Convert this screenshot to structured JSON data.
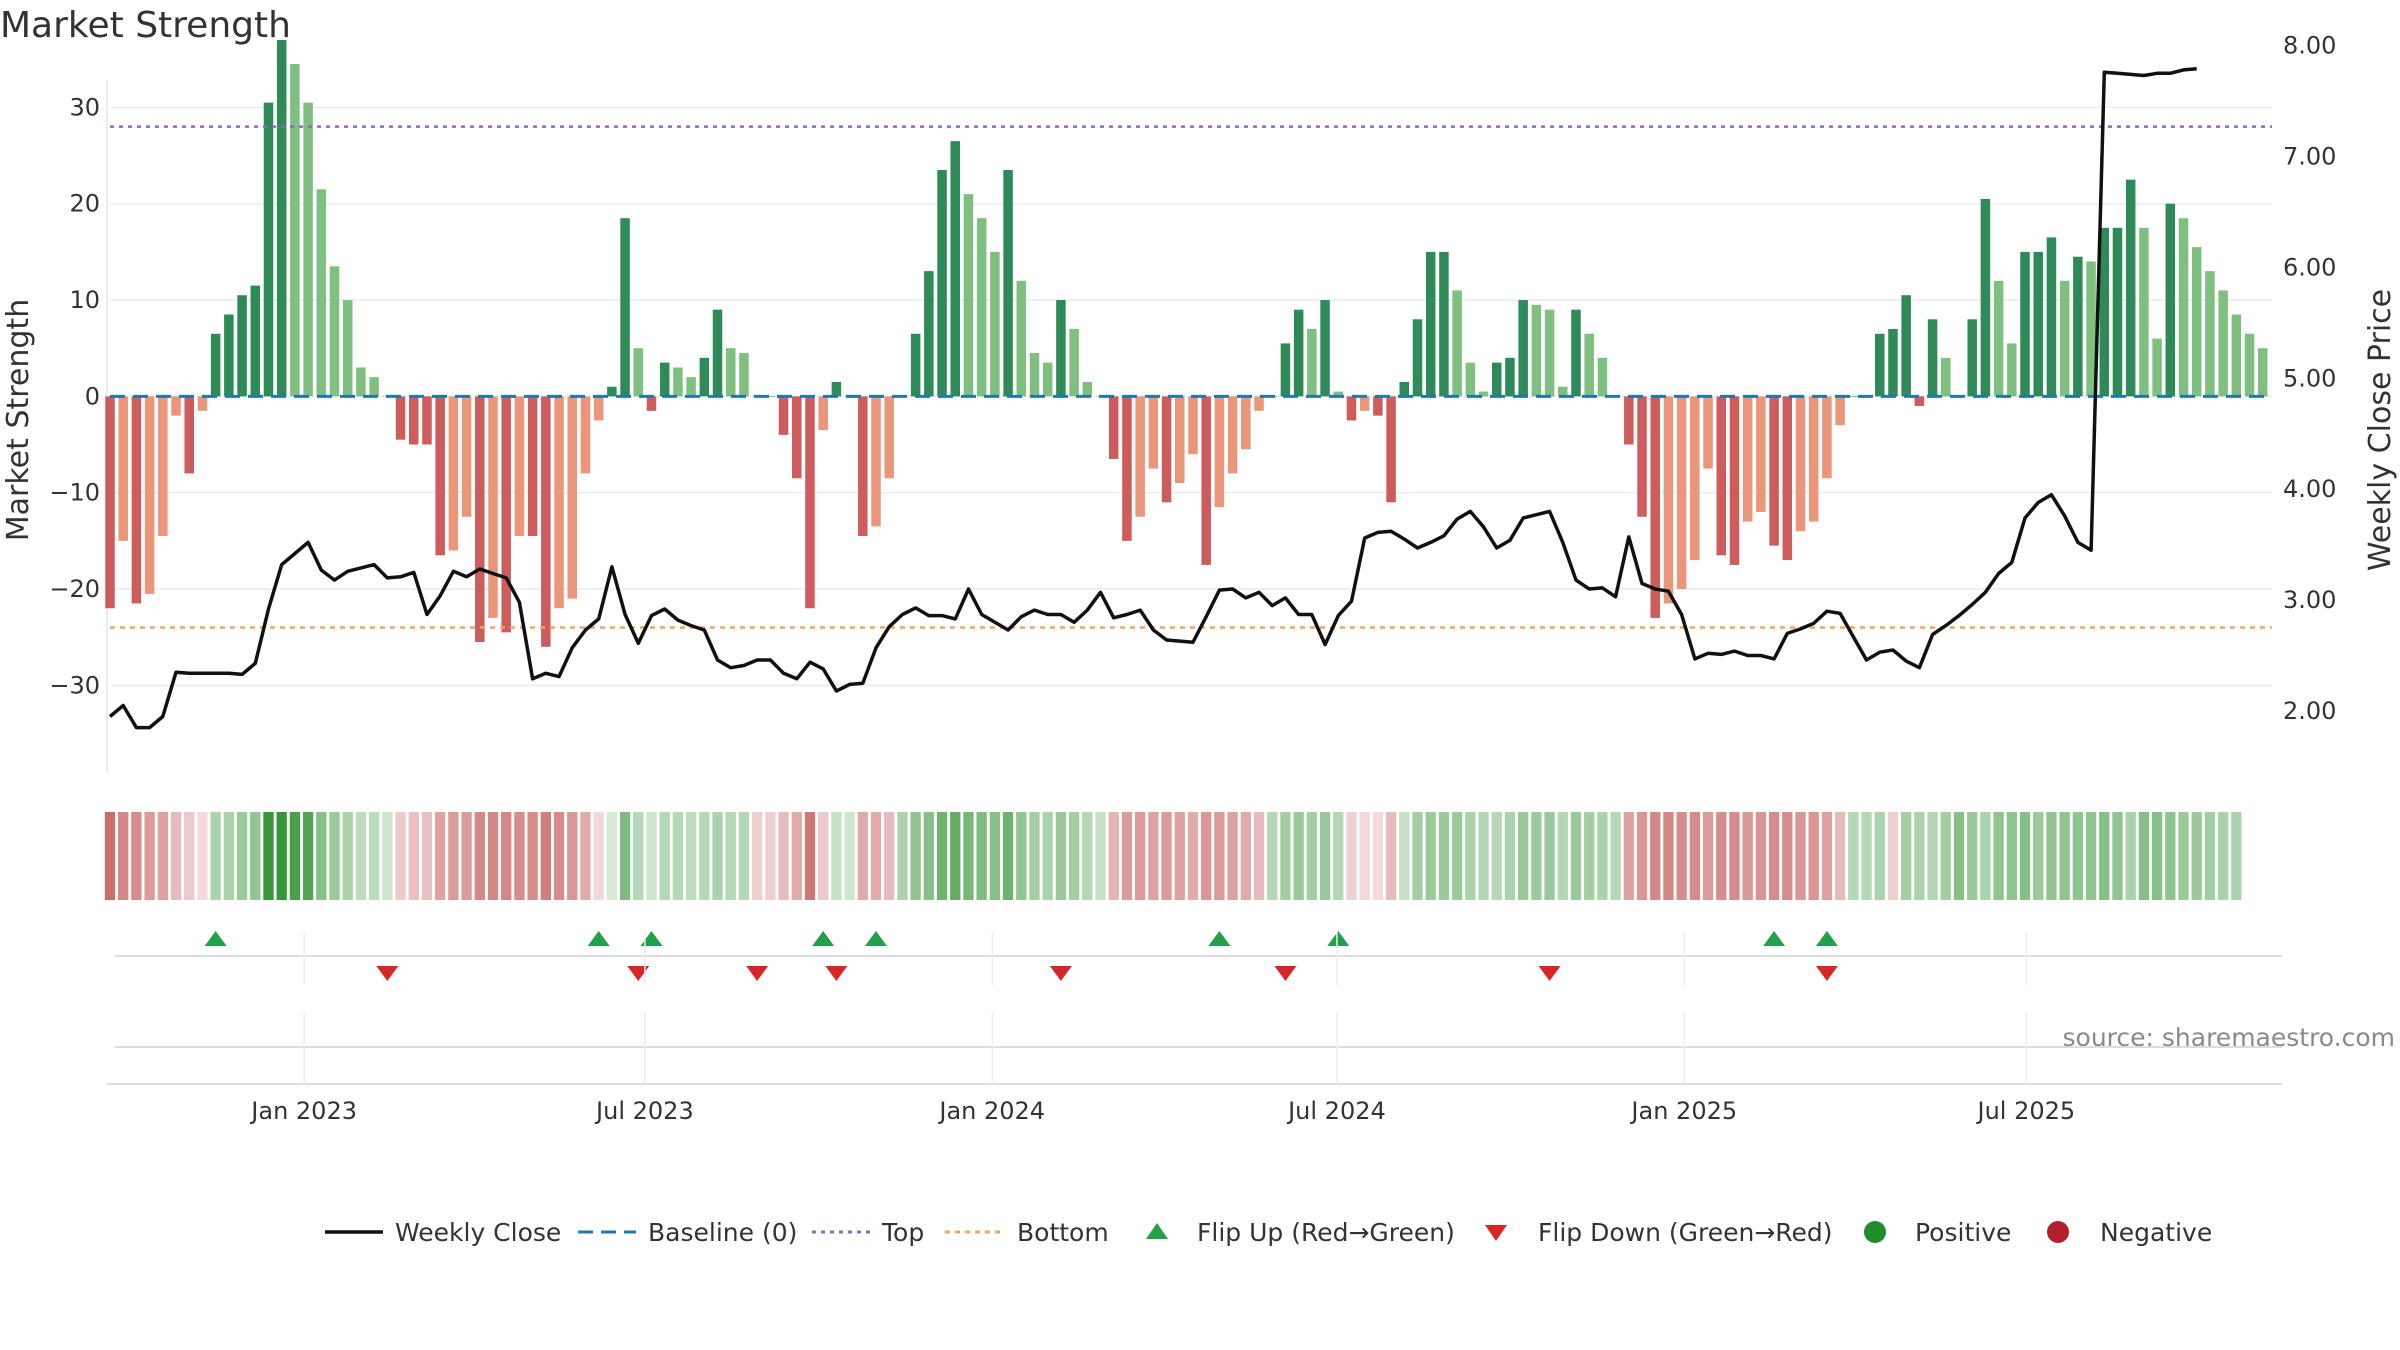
{
  "title": "Market Strength",
  "source": "source: sharemaestro.com",
  "colors": {
    "strong_green": "#2e8b57",
    "light_green": "#7fbf7f",
    "strong_red": "#cd5c5c",
    "light_red": "#e9967a",
    "line": "#111111",
    "baseline": "#1f77b4",
    "top": "#9467bd",
    "bottom": "#f4a460",
    "flip_up": "#22a04a",
    "flip_down": "#d62728",
    "positive": "#1e8c2a",
    "negative": "#b11f2c"
  },
  "legend": [
    {
      "label": "Weekly Close",
      "kind": "line"
    },
    {
      "label": "Baseline (0)",
      "kind": "dash"
    },
    {
      "label": "Top",
      "kind": "dot"
    },
    {
      "label": "Bottom",
      "kind": "dot2"
    },
    {
      "label": "Flip Up (Red→Green)",
      "kind": "up"
    },
    {
      "label": "Flip Down (Green→Red)",
      "kind": "down"
    },
    {
      "label": "Positive",
      "kind": "pos"
    },
    {
      "label": "Negative",
      "kind": "neg"
    }
  ],
  "chart_data": {
    "type": "bar",
    "title": "Market Strength",
    "ylabel": "Market Strength",
    "y2label": "Weekly Close Price",
    "ylim": [
      -39,
      37
    ],
    "y2lim": [
      1.45,
      8.05
    ],
    "y_ticks": [
      "30",
      "20",
      "10",
      "0",
      "−10",
      "−20",
      "−30"
    ],
    "y_tick_values": [
      30,
      20,
      10,
      0,
      -10,
      -20,
      -30
    ],
    "y2_ticks": [
      "8.00",
      "7.00",
      "6.00",
      "5.00",
      "4.00",
      "3.00",
      "2.00"
    ],
    "y2_tick_values": [
      8,
      7,
      6,
      5,
      4,
      3,
      2
    ],
    "x_ticks": [
      {
        "label": "Jan 2023",
        "week": 14.7
      },
      {
        "label": "Jul 2023",
        "week": 40.5
      },
      {
        "label": "Jan 2024",
        "week": 66.8
      },
      {
        "label": "Jul 2024",
        "week": 92.9
      },
      {
        "label": "Jan 2025",
        "week": 119.2
      },
      {
        "label": "Jul 2025",
        "week": 145.1
      }
    ],
    "reference_lines": {
      "baseline": 0,
      "top": 28,
      "bottom": -24
    },
    "strength": [
      -22,
      -15,
      -21.5,
      -20.5,
      -14.5,
      -2,
      -8,
      -1.5,
      6.5,
      8.5,
      10.5,
      11.5,
      30.5,
      37,
      34.5,
      30.5,
      21.5,
      13.5,
      10,
      3,
      2,
      0,
      -4.5,
      -5,
      -5,
      -16.5,
      -16,
      -12.5,
      -25.5,
      -23,
      -24.5,
      -14.5,
      -14.5,
      -26,
      -22,
      -21,
      -8,
      -2.5,
      1,
      18.5,
      5,
      -1.5,
      3.5,
      3,
      2,
      4,
      9,
      5,
      4.5,
      0,
      0,
      -4,
      -8.5,
      -22,
      -3.5,
      1.5,
      0,
      -14.5,
      -13.5,
      -8.5,
      0,
      6.5,
      13,
      23.5,
      26.5,
      21,
      18.5,
      15,
      23.5,
      12,
      4.5,
      3.5,
      10,
      7,
      1.5,
      0,
      -6.5,
      -15,
      -12.5,
      -7.5,
      -11,
      -9,
      -6,
      -17.5,
      -11.5,
      -8,
      -5.5,
      -1.5,
      0,
      5.5,
      9,
      7,
      10,
      0.5,
      -2.5,
      -1.5,
      -2,
      -11,
      1.5,
      8,
      15,
      15,
      11,
      3.5,
      0.5,
      3.5,
      4,
      10,
      9.5,
      9,
      1,
      9,
      6.5,
      4,
      0,
      -5,
      -12.5,
      -23,
      -21.5,
      -20,
      -17,
      -7.5,
      -16.5,
      -17.5,
      -13,
      -12,
      -15.5,
      -17,
      -14,
      -13,
      -8.5,
      -3,
      0,
      0,
      6.5,
      7,
      10.5,
      -1,
      8,
      4,
      0,
      8,
      20.5,
      12,
      5.5,
      15,
      15,
      16.5,
      12,
      14.5,
      14,
      17.5,
      17.5,
      22.5,
      17.5,
      6,
      20,
      18.5,
      15.5,
      13,
      11,
      8.5,
      6.5,
      5
    ],
    "weekly_close": [
      1.95,
      2.05,
      1.85,
      1.85,
      1.95,
      2.35,
      2.34,
      2.34,
      2.34,
      2.34,
      2.33,
      2.43,
      2.92,
      3.32,
      3.42,
      3.52,
      3.27,
      3.18,
      3.26,
      3.29,
      3.32,
      3.2,
      3.21,
      3.25,
      2.87,
      3.04,
      3.26,
      3.21,
      3.28,
      3.24,
      3.2,
      2.98,
      2.29,
      2.34,
      2.31,
      2.57,
      2.73,
      2.83,
      3.3,
      2.87,
      2.61,
      2.86,
      2.92,
      2.82,
      2.77,
      2.73,
      2.46,
      2.39,
      2.41,
      2.46,
      2.46,
      2.34,
      2.29,
      2.44,
      2.38,
      2.18,
      2.24,
      2.25,
      2.57,
      2.76,
      2.87,
      2.93,
      2.86,
      2.86,
      2.83,
      3.1,
      2.87,
      2.8,
      2.73,
      2.85,
      2.91,
      2.87,
      2.87,
      2.8,
      2.91,
      3.07,
      2.84,
      2.87,
      2.91,
      2.73,
      2.64,
      2.63,
      2.62,
      2.85,
      3.09,
      3.1,
      3.02,
      3.07,
      2.95,
      3.02,
      2.87,
      2.87,
      2.6,
      2.86,
      2.99,
      3.56,
      3.61,
      3.62,
      3.55,
      3.47,
      3.52,
      3.58,
      3.73,
      3.8,
      3.66,
      3.47,
      3.54,
      3.74,
      3.77,
      3.8,
      3.52,
      3.18,
      3.1,
      3.11,
      3.03,
      3.57,
      3.15,
      3.1,
      3.08,
      2.87,
      2.47,
      2.52,
      2.51,
      2.54,
      2.5,
      2.5,
      2.47,
      2.7,
      2.74,
      2.79,
      2.9,
      2.88,
      2.67,
      2.46,
      2.53,
      2.55,
      2.45,
      2.39,
      2.69,
      2.77,
      2.86,
      2.96,
      3.07,
      3.24,
      3.34,
      3.74,
      3.88,
      3.95,
      3.76,
      3.52,
      3.45,
      7.76,
      7.75,
      7.74,
      7.73,
      7.75,
      7.75,
      7.78,
      7.79
    ],
    "flip_up_weeks": [
      8,
      37,
      41,
      54,
      58,
      84,
      93,
      126,
      130
    ],
    "flip_down_weeks": [
      21,
      40,
      49,
      55,
      72,
      89,
      109,
      130
    ],
    "ribbon_strength": [
      -0.8,
      -0.65,
      -0.6,
      -0.5,
      -0.45,
      -0.3,
      -0.2,
      -0.1,
      0.35,
      0.35,
      0.45,
      0.5,
      1,
      1,
      0.9,
      0.85,
      0.55,
      0.45,
      0.35,
      0.25,
      0.25,
      0.15,
      -0.2,
      -0.25,
      -0.25,
      -0.45,
      -0.5,
      -0.5,
      -0.65,
      -0.65,
      -0.65,
      -0.6,
      -0.6,
      -0.7,
      -0.6,
      -0.55,
      -0.4,
      -0.1,
      0.1,
      0.6,
      0.3,
      0.15,
      0.3,
      0.3,
      0.25,
      0.3,
      0.35,
      0.3,
      0.3,
      -0.15,
      -0.15,
      -0.3,
      -0.4,
      -0.75,
      -0.2,
      0.2,
      0.15,
      -0.4,
      -0.4,
      -0.3,
      0.35,
      0.5,
      0.55,
      0.7,
      0.75,
      0.65,
      0.6,
      0.55,
      0.7,
      0.5,
      0.4,
      0.35,
      0.45,
      0.4,
      0.3,
      0.2,
      -0.35,
      -0.5,
      -0.5,
      -0.45,
      -0.5,
      -0.45,
      -0.4,
      -0.55,
      -0.5,
      -0.45,
      -0.4,
      -0.3,
      0.3,
      0.4,
      0.45,
      0.4,
      0.45,
      0.3,
      -0.15,
      -0.1,
      -0.1,
      -0.3,
      0.2,
      0.4,
      0.45,
      0.45,
      0.45,
      0.35,
      0.3,
      0.3,
      0.35,
      0.45,
      0.45,
      0.45,
      0.3,
      0.45,
      0.4,
      0.35,
      0.3,
      -0.45,
      -0.55,
      -0.65,
      -0.65,
      -0.6,
      -0.6,
      -0.5,
      -0.6,
      -0.6,
      -0.55,
      -0.55,
      -0.6,
      -0.6,
      -0.55,
      -0.55,
      -0.45,
      -0.3,
      0.3,
      0.3,
      0.35,
      -0.15,
      0.4,
      0.35,
      0.3,
      0.4,
      0.55,
      0.45,
      0.35,
      0.5,
      0.5,
      0.55,
      0.45,
      0.5,
      0.5,
      0.5,
      0.5,
      0.55,
      0.5,
      0.35,
      0.55,
      0.55,
      0.5,
      0.45,
      0.45,
      0.4,
      0.35,
      0.35
    ]
  }
}
